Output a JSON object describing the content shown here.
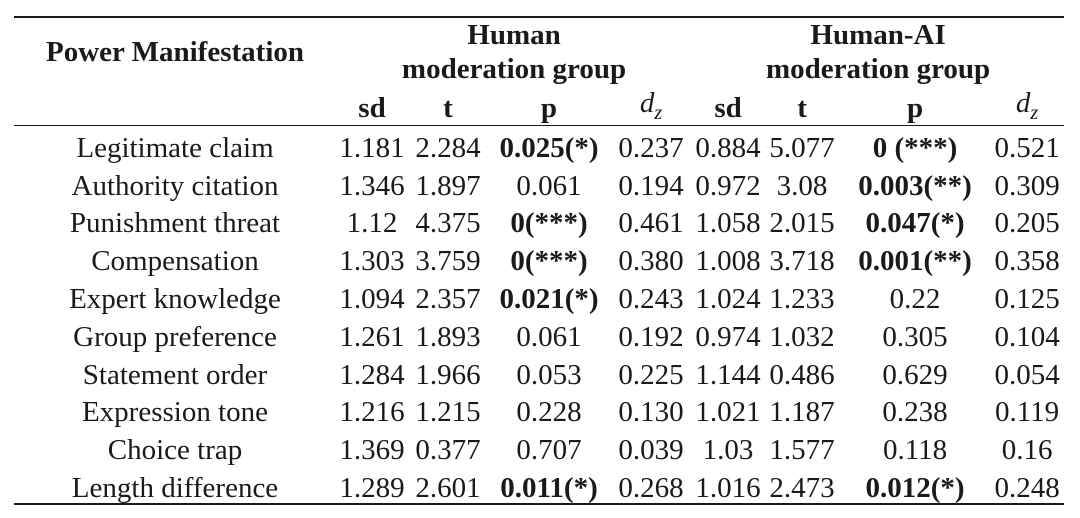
{
  "header": {
    "row_label": "Power Manifestation",
    "group1_line1": "Human",
    "group1_line2": "moderation group",
    "group2_line1": "Human-AI",
    "group2_line2": "moderation group",
    "cols": [
      "sd",
      "t",
      "p",
      "d",
      "z"
    ]
  },
  "rows": [
    {
      "label": "Legitimate claim",
      "h_sd": "1.181",
      "h_t": "2.284",
      "h_p": "0.025(*)",
      "h_p_bold": true,
      "h_dz": "0.237",
      "a_sd": "0.884",
      "a_t": "5.077",
      "a_p": "0 (***)",
      "a_p_bold": true,
      "a_dz": "0.521"
    },
    {
      "label": "Authority citation",
      "h_sd": "1.346",
      "h_t": "1.897",
      "h_p": "0.061",
      "h_p_bold": false,
      "h_dz": "0.194",
      "a_sd": "0.972",
      "a_t": "3.08",
      "a_p": "0.003(**)",
      "a_p_bold": true,
      "a_dz": "0.309"
    },
    {
      "label": "Punishment threat",
      "h_sd": "1.12",
      "h_t": "4.375",
      "h_p": "0(***)",
      "h_p_bold": true,
      "h_dz": "0.461",
      "a_sd": "1.058",
      "a_t": "2.015",
      "a_p": "0.047(*)",
      "a_p_bold": true,
      "a_dz": "0.205"
    },
    {
      "label": "Compensation",
      "h_sd": "1.303",
      "h_t": "3.759",
      "h_p": "0(***)",
      "h_p_bold": true,
      "h_dz": "0.380",
      "a_sd": "1.008",
      "a_t": "3.718",
      "a_p": "0.001(**)",
      "a_p_bold": true,
      "a_dz": "0.358"
    },
    {
      "label": "Expert knowledge",
      "h_sd": "1.094",
      "h_t": "2.357",
      "h_p": "0.021(*)",
      "h_p_bold": true,
      "h_dz": "0.243",
      "a_sd": "1.024",
      "a_t": "1.233",
      "a_p": "0.22",
      "a_p_bold": false,
      "a_dz": "0.125"
    },
    {
      "label": "Group preference",
      "h_sd": "1.261",
      "h_t": "1.893",
      "h_p": "0.061",
      "h_p_bold": false,
      "h_dz": "0.192",
      "a_sd": "0.974",
      "a_t": "1.032",
      "a_p": "0.305",
      "a_p_bold": false,
      "a_dz": "0.104"
    },
    {
      "label": "Statement order",
      "h_sd": "1.284",
      "h_t": "1.966",
      "h_p": "0.053",
      "h_p_bold": false,
      "h_dz": "0.225",
      "a_sd": "1.144",
      "a_t": "0.486",
      "a_p": "0.629",
      "a_p_bold": false,
      "a_dz": "0.054"
    },
    {
      "label": "Expression tone",
      "h_sd": "1.216",
      "h_t": "1.215",
      "h_p": "0.228",
      "h_p_bold": false,
      "h_dz": "0.130",
      "a_sd": "1.021",
      "a_t": "1.187",
      "a_p": "0.238",
      "a_p_bold": false,
      "a_dz": "0.119"
    },
    {
      "label": "Choice trap",
      "h_sd": "1.369",
      "h_t": "0.377",
      "h_p": "0.707",
      "h_p_bold": false,
      "h_dz": "0.039",
      "a_sd": "1.03",
      "a_t": "1.577",
      "a_p": "0.118",
      "a_p_bold": false,
      "a_dz": "0.16"
    },
    {
      "label": "Length difference",
      "h_sd": "1.289",
      "h_t": "2.601",
      "h_p": "0.011(*)",
      "h_p_bold": true,
      "h_dz": "0.268",
      "a_sd": "1.016",
      "a_t": "2.473",
      "a_p": "0.012(*)",
      "a_p_bold": true,
      "a_dz": "0.248"
    }
  ]
}
